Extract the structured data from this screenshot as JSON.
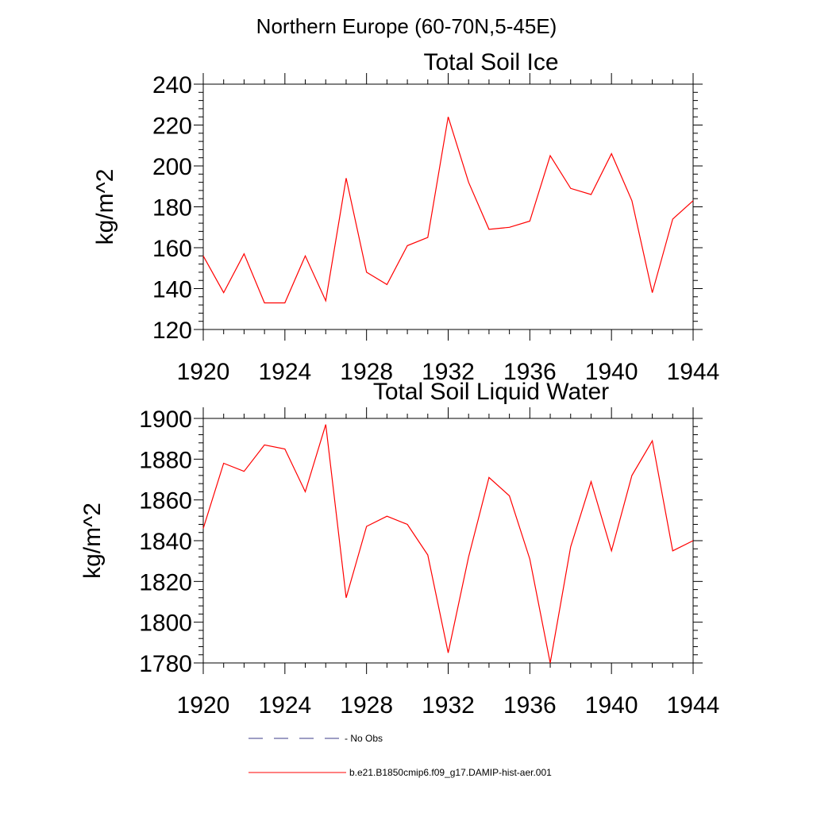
{
  "figure": {
    "title": "Northern Europe (60-70N,5-45E)"
  },
  "legend": {
    "entries": [
      {
        "label": "- No Obs",
        "style": "dashed",
        "color": "#3b3b8a"
      },
      {
        "label": "b.e21.B1850cmip6.f09_g17.DAMIP-hist-aer.001",
        "style": "solid",
        "color": "#ff0000"
      }
    ]
  },
  "colors": {
    "series": "#ff0000",
    "axis": "#000000"
  },
  "chart_data": [
    {
      "type": "line",
      "title": "Total Soil Ice",
      "xlabel": "",
      "ylabel": "kg/m^2",
      "xlim": [
        1920,
        1944
      ],
      "ylim": [
        120,
        240
      ],
      "xticks": [
        1920,
        1924,
        1928,
        1932,
        1936,
        1940,
        1944
      ],
      "yticks": [
        120,
        140,
        160,
        180,
        200,
        220,
        240
      ],
      "x": [
        1920,
        1921,
        1922,
        1923,
        1924,
        1925,
        1926,
        1927,
        1928,
        1929,
        1930,
        1931,
        1932,
        1933,
        1934,
        1935,
        1936,
        1937,
        1938,
        1939,
        1940,
        1941,
        1942,
        1943,
        1944
      ],
      "series": [
        {
          "values": [
            156,
            138,
            157,
            133,
            133,
            156,
            134,
            194,
            148,
            142,
            161,
            165,
            224,
            192,
            169,
            170,
            173,
            205,
            189,
            186,
            206,
            183,
            138,
            174,
            183
          ]
        }
      ],
      "grid": false
    },
    {
      "type": "line",
      "title": "Total Soil Liquid Water",
      "xlabel": "",
      "ylabel": "kg/m^2",
      "xlim": [
        1920,
        1944
      ],
      "ylim": [
        1780,
        1900
      ],
      "xticks": [
        1920,
        1924,
        1928,
        1932,
        1936,
        1940,
        1944
      ],
      "yticks": [
        1780,
        1800,
        1820,
        1840,
        1860,
        1880,
        1900
      ],
      "x": [
        1920,
        1921,
        1922,
        1923,
        1924,
        1925,
        1926,
        1927,
        1928,
        1929,
        1930,
        1931,
        1932,
        1933,
        1934,
        1935,
        1936,
        1937,
        1938,
        1939,
        1940,
        1941,
        1942,
        1943,
        1944
      ],
      "series": [
        {
          "values": [
            1846,
            1878,
            1874,
            1887,
            1885,
            1864,
            1897,
            1812,
            1847,
            1852,
            1848,
            1833,
            1785,
            1832,
            1871,
            1862,
            1831,
            1780,
            1837,
            1869,
            1835,
            1872,
            1889,
            1835,
            1840
          ]
        }
      ],
      "grid": false
    }
  ]
}
